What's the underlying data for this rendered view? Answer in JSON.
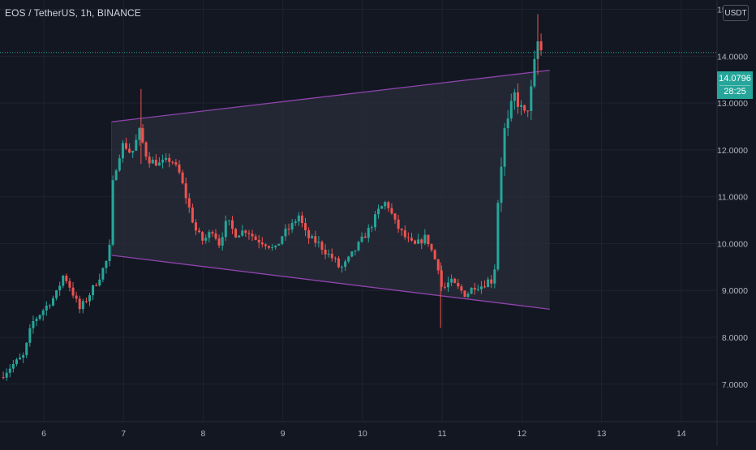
{
  "header": {
    "symbol_title": "EOS / TetherUS, 1h, BINANCE",
    "currency_button": "USDT"
  },
  "current_price": {
    "value": 14.0796,
    "label": "14.0796",
    "countdown": "28:25"
  },
  "colors": {
    "background": "#131722",
    "grid": "#1f2330",
    "up": "#26a69a",
    "down": "#ef5350",
    "channel_line": "#8e44ad",
    "channel_fill": "#2a2d39",
    "price_line": "#26a69a",
    "axis_text": "#b2b5be"
  },
  "chart_data": {
    "type": "candlestick",
    "title": "EOS / TetherUS, 1h, BINANCE",
    "x_axis": {
      "unit": "day",
      "range": [
        5.45,
        14.45
      ],
      "tick_values": [
        6,
        7,
        8,
        9,
        10,
        11,
        12,
        13,
        14
      ],
      "tick_labels": [
        "6",
        "7",
        "8",
        "9",
        "10",
        "11",
        "12",
        "13",
        "14"
      ]
    },
    "y_axis": {
      "range": [
        6.2,
        15.2
      ],
      "tick_values": [
        7,
        8,
        9,
        10,
        11,
        12,
        13,
        14,
        15
      ],
      "tick_labels": [
        "7.0000",
        "8.0000",
        "9.0000",
        "10.0000",
        "11.0000",
        "12.0000",
        "13.0000",
        "14.0000",
        "15.0000"
      ]
    },
    "grid": true,
    "path_points": [
      [
        5.45,
        7.15
      ],
      [
        5.6,
        7.4
      ],
      [
        5.75,
        7.6
      ],
      [
        5.85,
        8.3
      ],
      [
        5.95,
        8.5
      ],
      [
        6.05,
        8.7
      ],
      [
        6.15,
        8.9
      ],
      [
        6.25,
        9.35
      ],
      [
        6.35,
        9.0
      ],
      [
        6.45,
        8.6
      ],
      [
        6.55,
        8.85
      ],
      [
        6.7,
        9.3
      ],
      [
        6.82,
        9.75
      ],
      [
        6.87,
        11.4
      ],
      [
        6.95,
        11.9
      ],
      [
        7.0,
        12.15
      ],
      [
        7.1,
        11.9
      ],
      [
        7.2,
        12.4
      ],
      [
        7.3,
        11.8
      ],
      [
        7.45,
        11.7
      ],
      [
        7.6,
        11.8
      ],
      [
        7.7,
        11.5
      ],
      [
        7.8,
        10.9
      ],
      [
        7.9,
        10.3
      ],
      [
        8.0,
        10.05
      ],
      [
        8.12,
        10.3
      ],
      [
        8.2,
        10.0
      ],
      [
        8.3,
        10.5
      ],
      [
        8.4,
        10.2
      ],
      [
        8.55,
        10.3
      ],
      [
        8.65,
        10.1
      ],
      [
        8.8,
        10.0
      ],
      [
        8.9,
        9.85
      ],
      [
        9.0,
        10.2
      ],
      [
        9.1,
        10.35
      ],
      [
        9.2,
        10.6
      ],
      [
        9.3,
        10.15
      ],
      [
        9.45,
        10.0
      ],
      [
        9.55,
        9.8
      ],
      [
        9.65,
        9.65
      ],
      [
        9.72,
        9.45
      ],
      [
        9.8,
        9.6
      ],
      [
        9.9,
        9.85
      ],
      [
        10.0,
        10.1
      ],
      [
        10.1,
        10.35
      ],
      [
        10.2,
        10.7
      ],
      [
        10.3,
        10.9
      ],
      [
        10.42,
        10.4
      ],
      [
        10.55,
        10.1
      ],
      [
        10.65,
        9.95
      ],
      [
        10.8,
        10.15
      ],
      [
        10.9,
        9.7
      ],
      [
        10.95,
        9.5
      ],
      [
        11.0,
        9.0
      ],
      [
        11.1,
        9.2
      ],
      [
        11.2,
        9.05
      ],
      [
        11.3,
        8.9
      ],
      [
        11.4,
        9.1
      ],
      [
        11.5,
        9.1
      ],
      [
        11.6,
        9.25
      ],
      [
        11.65,
        9.1
      ],
      [
        11.68,
        10.5
      ],
      [
        11.73,
        11.5
      ],
      [
        11.78,
        12.4
      ],
      [
        11.83,
        12.6
      ],
      [
        11.9,
        13.2
      ],
      [
        11.98,
        12.9
      ],
      [
        12.05,
        12.7
      ],
      [
        12.12,
        13.3
      ],
      [
        12.17,
        14.0
      ],
      [
        12.2,
        14.3
      ],
      [
        12.25,
        14.08
      ]
    ],
    "notable_wicks": [
      {
        "x": 7.22,
        "high": 13.3,
        "low": 11.7
      },
      {
        "x": 10.98,
        "high": 9.6,
        "low": 8.2
      },
      {
        "x": 12.2,
        "high": 14.9,
        "low": 13.6
      }
    ],
    "channel": {
      "upper": [
        [
          6.85,
          12.6
        ],
        [
          12.35,
          13.7
        ]
      ],
      "lower": [
        [
          6.85,
          9.75
        ],
        [
          12.35,
          8.6
        ]
      ]
    },
    "current_price_line": 14.0796
  }
}
